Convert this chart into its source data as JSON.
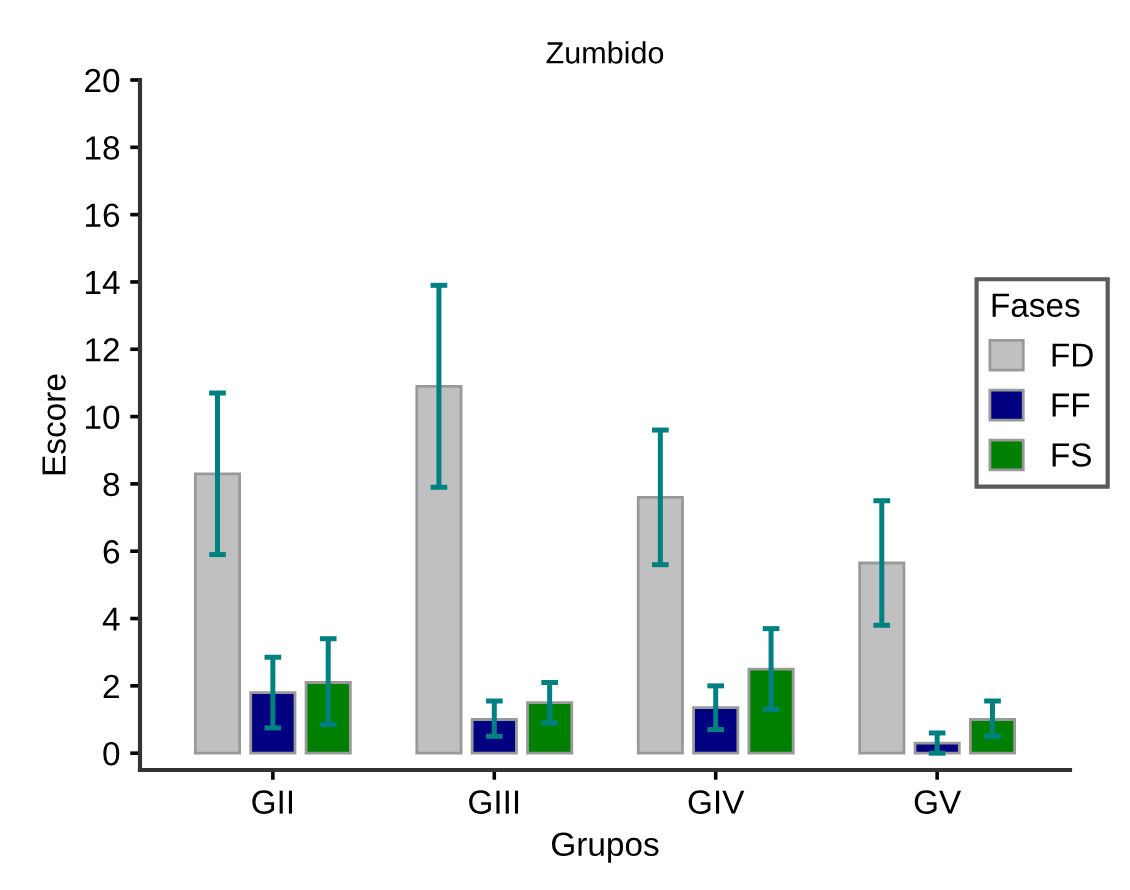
{
  "chart_data": {
    "type": "bar",
    "title": "Zumbido",
    "xlabel": "Grupos",
    "ylabel": "Escore",
    "legend_title": "Fases",
    "categories": [
      "GII",
      "GIII",
      "GIV",
      "GV"
    ],
    "series": [
      {
        "name": "FD",
        "color": "#c0c0c0",
        "values": [
          8.3,
          10.9,
          7.6,
          5.65
        ],
        "errors": [
          [
            5.9,
            10.7
          ],
          [
            7.9,
            13.9
          ],
          [
            5.6,
            9.6
          ],
          [
            3.8,
            7.5
          ]
        ]
      },
      {
        "name": "FF",
        "color": "#000080",
        "values": [
          1.8,
          1.0,
          1.35,
          0.3
        ],
        "errors": [
          [
            0.75,
            2.85
          ],
          [
            0.5,
            1.55
          ],
          [
            0.7,
            2.0
          ],
          [
            0.0,
            0.6
          ]
        ]
      },
      {
        "name": "FS",
        "color": "#008000",
        "values": [
          2.1,
          1.5,
          2.5,
          1.0
        ],
        "errors": [
          [
            0.85,
            3.4
          ],
          [
            0.9,
            2.1
          ],
          [
            1.3,
            3.7
          ],
          [
            0.5,
            1.55
          ]
        ]
      }
    ],
    "ylim": [
      -0.5,
      20
    ],
    "yticks": [
      0,
      2,
      4,
      6,
      8,
      10,
      12,
      14,
      16,
      18,
      20
    ],
    "grid": false,
    "legend": "right"
  }
}
